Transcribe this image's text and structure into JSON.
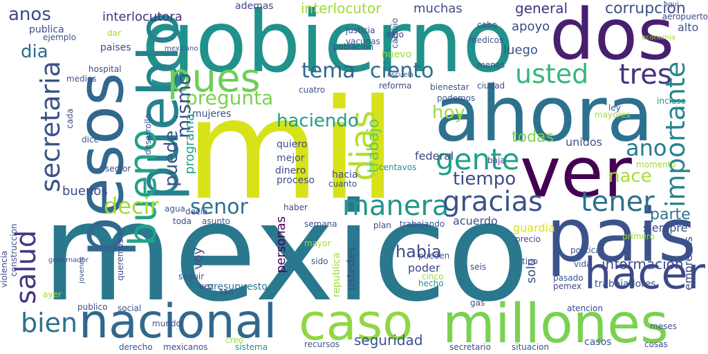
{
  "words": [
    {
      "text": "mexico",
      "color": "#2a788e"
    },
    {
      "text": "mil",
      "color": "#d8e219"
    },
    {
      "text": "gobierno",
      "color": "#21918c"
    },
    {
      "text": "ahora",
      "color": "#2c728e"
    },
    {
      "text": "pais",
      "color": "#3b528b"
    },
    {
      "text": "dos",
      "color": "#481f70"
    },
    {
      "text": "ver",
      "color": "#440154"
    },
    {
      "text": "pesos",
      "color": "#31688e"
    },
    {
      "text": "pueblo",
      "color": "#26828e"
    },
    {
      "text": "millones",
      "color": "#7ad151"
    },
    {
      "text": "caso",
      "color": "#8fd744"
    },
    {
      "text": "nacional",
      "color": "#31688e"
    },
    {
      "text": "pues",
      "color": "#6ece58"
    },
    {
      "text": "hacer",
      "color": "#3e4989"
    },
    {
      "text": "bueno",
      "color": "#20a486"
    },
    {
      "text": "dias",
      "color": "#b5de2b"
    },
    {
      "text": "manera",
      "color": "#1f988b"
    },
    {
      "text": "gracias",
      "color": "#3b528b"
    },
    {
      "text": "tener",
      "color": "#2d708e"
    },
    {
      "text": "gente",
      "color": "#1fa188"
    },
    {
      "text": "usted",
      "color": "#35b779"
    },
    {
      "text": "tres",
      "color": "#46327e"
    },
    {
      "text": "importante",
      "color": "#25858e"
    },
    {
      "text": "secretaria",
      "color": "#3b528b"
    },
    {
      "text": "salud",
      "color": "#453781"
    },
    {
      "text": "decir",
      "color": "#a2da37"
    },
    {
      "text": "bien",
      "color": "#2d708e"
    },
    {
      "text": "senor",
      "color": "#2c728e"
    },
    {
      "text": "tema",
      "color": "#33638d"
    },
    {
      "text": "ciento",
      "color": "#2e6e8e"
    },
    {
      "text": "pregunta",
      "color": "#7ad151"
    },
    {
      "text": "mismo",
      "color": "#3b528b"
    },
    {
      "text": "ano",
      "color": "#29798e"
    },
    {
      "text": "hoy",
      "color": "#a0da39"
    },
    {
      "text": "todas",
      "color": "#7ad151"
    },
    {
      "text": "tiempo",
      "color": "#3e4a89"
    },
    {
      "text": "nace",
      "color": "#a8db34"
    },
    {
      "text": "parte",
      "color": "#2c738e"
    },
    {
      "text": "haciendo",
      "color": "#1f9e89"
    },
    {
      "text": "habia",
      "color": "#3f4788"
    },
    {
      "text": "informacion",
      "color": "#3e4989"
    },
    {
      "text": "seguridad",
      "color": "#3b528b"
    },
    {
      "text": "trabajo",
      "color": "#5ec962"
    },
    {
      "text": "puede",
      "color": "#3b528b"
    },
    {
      "text": "anos",
      "color": "#3e4989"
    },
    {
      "text": "dia",
      "color": "#31688e"
    },
    {
      "text": "interlocutora",
      "color": "#46337e"
    },
    {
      "text": "interlocutor",
      "color": "#a2da37"
    },
    {
      "text": "corrupcion",
      "color": "#3b528b"
    },
    {
      "text": "general",
      "color": "#46327e"
    },
    {
      "text": "muchas",
      "color": "#3e4a89"
    },
    {
      "text": "apoyo",
      "color": "#3e4989"
    },
    {
      "text": "luego",
      "color": "#3b528b"
    },
    {
      "text": "programa",
      "color": "#1f9e89"
    },
    {
      "text": "buenos",
      "color": "#3e4989"
    },
    {
      "text": "unidos",
      "color": "#3b528b"
    },
    {
      "text": "federal",
      "color": "#3e4989"
    },
    {
      "text": "acuerdo",
      "color": "#3b528b"
    },
    {
      "text": "siempre",
      "color": "#3e4989"
    },
    {
      "text": "personas",
      "color": "#440154"
    },
    {
      "text": "ustedes",
      "color": "#3e4989"
    },
    {
      "text": "solo",
      "color": "#3b528b"
    },
    {
      "text": "poder",
      "color": "#3e4989"
    },
    {
      "text": "presupuesto",
      "color": "#2c728e"
    },
    {
      "text": "trabajadores",
      "color": "#3b528b"
    },
    {
      "text": "empresas",
      "color": "#3e4989"
    },
    {
      "text": "guardia",
      "color": "#d8e219"
    },
    {
      "text": "republica",
      "color": "#a0da39"
    },
    {
      "text": "publica",
      "color": "#3e4989"
    },
    {
      "text": "ejemplo",
      "color": "#3b528b"
    },
    {
      "text": "paises",
      "color": "#3e4989"
    },
    {
      "text": "mexicano",
      "color": "#3b528b"
    },
    {
      "text": "ademas",
      "color": "#3e4989"
    },
    {
      "text": "nuevo",
      "color": "#a0da39"
    },
    {
      "text": "mujeres",
      "color": "#3b528b"
    },
    {
      "text": "quiero",
      "color": "#3e4989"
    },
    {
      "text": "mejor",
      "color": "#3b528b"
    },
    {
      "text": "dinero",
      "color": "#3e4989"
    },
    {
      "text": "proceso",
      "color": "#3b528b"
    },
    {
      "text": "hacia",
      "color": "#3e4989"
    },
    {
      "text": "cuanto",
      "color": "#3b528b"
    },
    {
      "text": "centavos",
      "color": "#21918c"
    },
    {
      "text": "baja",
      "color": "#3e4989"
    },
    {
      "text": "ley",
      "color": "#3b528b"
    },
    {
      "text": "incluso",
      "color": "#21918c"
    },
    {
      "text": "momento",
      "color": "#a0da39"
    },
    {
      "text": "mayores",
      "color": "#a0da39"
    },
    {
      "text": "politica",
      "color": "#3b528b"
    },
    {
      "text": "primero",
      "color": "#a0da39"
    },
    {
      "text": "precio",
      "color": "#3e4989"
    },
    {
      "text": "pueden",
      "color": "#3b528b"
    },
    {
      "text": "cinco",
      "color": "#a0da39"
    },
    {
      "text": "hecho",
      "color": "#21918c"
    },
    {
      "text": "seis",
      "color": "#3e4989"
    },
    {
      "text": "pasado",
      "color": "#3b528b"
    },
    {
      "text": "pemex",
      "color": "#3e4989"
    },
    {
      "text": "vida",
      "color": "#3b528b"
    },
    {
      "text": "tipo",
      "color": "#3b528b"
    },
    {
      "text": "atencion",
      "color": "#3e4989"
    },
    {
      "text": "social",
      "color": "#3b528b"
    },
    {
      "text": "publico",
      "color": "#3e4989"
    },
    {
      "text": "mundo",
      "color": "#3b528b"
    },
    {
      "text": "ayer",
      "color": "#a0da39"
    },
    {
      "text": "violencia",
      "color": "#3e4989"
    },
    {
      "text": "construccion",
      "color": "#3b528b"
    },
    {
      "text": "gobernador",
      "color": "#3e4989"
    },
    {
      "text": "jovenes",
      "color": "#3b528b"
    },
    {
      "text": "queremos",
      "color": "#3e4989"
    },
    {
      "text": "seguir",
      "color": "#3b528b"
    },
    {
      "text": "vez",
      "color": "#3e4989"
    },
    {
      "text": "voy",
      "color": "#3b528b"
    },
    {
      "text": "tan",
      "color": "#3e4989"
    },
    {
      "text": "mayor",
      "color": "#a0da39"
    },
    {
      "text": "sido",
      "color": "#3b528b"
    },
    {
      "text": "plan",
      "color": "#3e4989"
    },
    {
      "text": "semana",
      "color": "#3b528b"
    },
    {
      "text": "dar",
      "color": "#a0da39"
    },
    {
      "text": "dice",
      "color": "#3b528b"
    },
    {
      "text": "cada",
      "color": "#3e4989"
    },
    {
      "text": "desarrollo",
      "color": "#3b528b"
    },
    {
      "text": "gas",
      "color": "#3e4989"
    },
    {
      "text": "recursos",
      "color": "#3b528b"
    },
    {
      "text": "sistema",
      "color": "#21918c"
    },
    {
      "text": "mexicanos",
      "color": "#3e4989"
    },
    {
      "text": "derecho",
      "color": "#3b528b"
    },
    {
      "text": "creo",
      "color": "#a0da39"
    },
    {
      "text": "casos",
      "color": "#3b528b"
    },
    {
      "text": "cosas",
      "color": "#3e4989"
    },
    {
      "text": "situacion",
      "color": "#3b528b"
    },
    {
      "text": "secretario",
      "color": "#3e4989"
    },
    {
      "text": "trabajando",
      "color": "#3b528b"
    },
    {
      "text": "toda",
      "color": "#3e4989"
    },
    {
      "text": "asunto",
      "color": "#3b528b"
    },
    {
      "text": "haber",
      "color": "#3e4989"
    },
    {
      "text": "cuatro",
      "color": "#3b528b"
    },
    {
      "text": "reforma",
      "color": "#3e4989"
    },
    {
      "text": "bienestar",
      "color": "#3b528b"
    },
    {
      "text": "menos",
      "color": "#3e4989"
    },
    {
      "text": "podemos",
      "color": "#3b528b"
    },
    {
      "text": "ciudad",
      "color": "#3e4989"
    },
    {
      "text": "vacunas",
      "color": "#3b528b"
    },
    {
      "text": "justicia",
      "color": "#3e4989"
    },
    {
      "text": "escuela",
      "color": "#3b528b"
    },
    {
      "text": "hospital",
      "color": "#3e4989"
    },
    {
      "text": "medios",
      "color": "#3b528b"
    },
    {
      "text": "decia",
      "color": "#3e4989"
    },
    {
      "text": "agua",
      "color": "#3b528b"
    },
    {
      "text": "sector",
      "color": "#3e4989"
    },
    {
      "text": "aqui",
      "color": "#3b528b"
    },
    {
      "text": "economia",
      "color": "#a0da39"
    },
    {
      "text": "aeropuerto",
      "color": "#3e4989"
    },
    {
      "text": "alto",
      "color": "#3b528b"
    },
    {
      "text": "cabo",
      "color": "#3e4989"
    },
    {
      "text": "medicos",
      "color": "#3b528b"
    },
    {
      "text": "digo",
      "color": "#3e4989"
    },
    {
      "text": "cambio",
      "color": "#3b528b"
    },
    {
      "text": "poblacion",
      "color": "#3e4989"
    },
    {
      "text": "meses",
      "color": "#3b528b"
    },
    {
      "text": "mas",
      "color": "#3e4989"
    }
  ]
}
